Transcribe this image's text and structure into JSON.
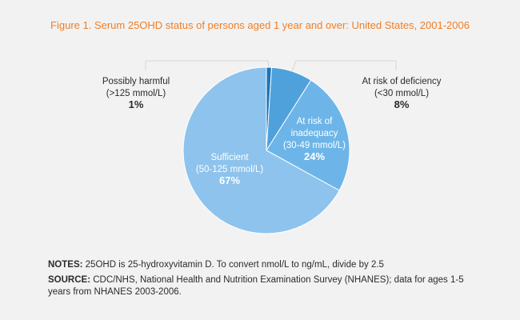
{
  "chart_data": {
    "type": "pie",
    "title": "Figure 1. Serum 25OHD status of persons aged 1 year and over: United States, 2001-2006",
    "slices": [
      {
        "label_line1": "Possibly harmful",
        "label_line2": "(>125 mmol/L)",
        "value": 1,
        "value_label": "1%",
        "color": "#1a75bb"
      },
      {
        "label_line1": "At risk of deficiency",
        "label_line2": "(<30 mmol/L)",
        "value": 8,
        "value_label": "8%",
        "color": "#4fa1dc"
      },
      {
        "label_line1": "At risk of",
        "label_line1b": "inadequacy",
        "label_line2": "(30-49 mmol/L)",
        "value": 24,
        "value_label": "24%",
        "color": "#6db5e8"
      },
      {
        "label_line1": "Sufficient",
        "label_line2": "(50-125 mmol/L)",
        "value": 67,
        "value_label": "67%",
        "color": "#8dc3ec"
      }
    ]
  },
  "notes": {
    "notes_label": "NOTES:",
    "notes_text": " 25OHD is 25-hydroxyvitamin D. To convert nmol/L to ng/mL, divide by 2.5",
    "source_label": "SOURCE:",
    "source_text": " CDC/NHS, National Health and Nutrition Examination Survey (NHANES); data for ages 1-5 years from NHANES 2003-2006."
  }
}
